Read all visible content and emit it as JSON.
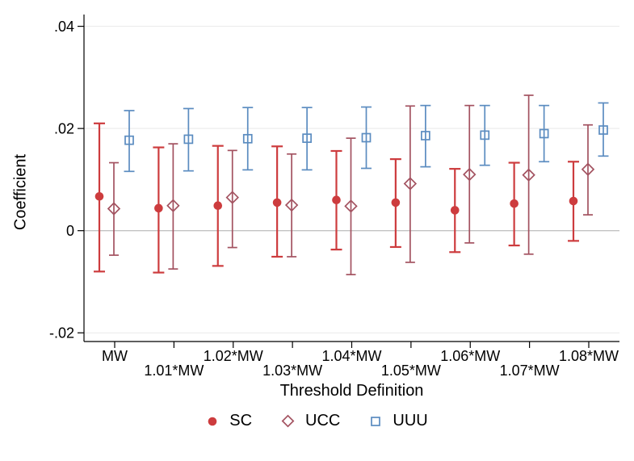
{
  "chart_data": {
    "type": "scatter",
    "subtype": "coefficient-errorbar",
    "title": "",
    "xlabel": "Threshold Definition",
    "ylabel": "Coefficient",
    "ylim": [
      -0.025,
      0.045
    ],
    "grid": true,
    "legend_position": "bottom",
    "yticks": [
      {
        "value": 0.04,
        "label": ".04"
      },
      {
        "value": 0.02,
        "label": ".02"
      },
      {
        "value": 0,
        "label": "0"
      },
      {
        "value": -0.02,
        "label": "-.02"
      }
    ],
    "categories": [
      "MW",
      "1.01*MW",
      "1.02*MW",
      "1.03*MW",
      "1.04*MW",
      "1.05*MW",
      "1.06*MW",
      "1.07*MW",
      "1.08*MW"
    ],
    "series": [
      {
        "name": "SC",
        "marker": "filled-circle",
        "color": "#cd3c3e",
        "points": [
          {
            "estimate": 0.0067,
            "ci_low": -0.008,
            "ci_high": 0.021
          },
          {
            "estimate": 0.0044,
            "ci_low": -0.0082,
            "ci_high": 0.0163
          },
          {
            "estimate": 0.0049,
            "ci_low": -0.0069,
            "ci_high": 0.0166
          },
          {
            "estimate": 0.0055,
            "ci_low": -0.0051,
            "ci_high": 0.0165
          },
          {
            "estimate": 0.006,
            "ci_low": -0.0037,
            "ci_high": 0.0156
          },
          {
            "estimate": 0.0055,
            "ci_low": -0.0032,
            "ci_high": 0.014
          },
          {
            "estimate": 0.004,
            "ci_low": -0.0042,
            "ci_high": 0.0121
          },
          {
            "estimate": 0.0053,
            "ci_low": -0.0029,
            "ci_high": 0.0133
          },
          {
            "estimate": 0.0058,
            "ci_low": -0.002,
            "ci_high": 0.0135
          }
        ]
      },
      {
        "name": "UCC",
        "marker": "hollow-diamond",
        "color": "#a35260",
        "points": [
          {
            "estimate": 0.0043,
            "ci_low": -0.0048,
            "ci_high": 0.0133
          },
          {
            "estimate": 0.0049,
            "ci_low": -0.0075,
            "ci_high": 0.017
          },
          {
            "estimate": 0.0065,
            "ci_low": -0.0033,
            "ci_high": 0.0157
          },
          {
            "estimate": 0.005,
            "ci_low": -0.0051,
            "ci_high": 0.015
          },
          {
            "estimate": 0.0048,
            "ci_low": -0.0086,
            "ci_high": 0.0181
          },
          {
            "estimate": 0.0092,
            "ci_low": -0.0062,
            "ci_high": 0.0244
          },
          {
            "estimate": 0.011,
            "ci_low": -0.0024,
            "ci_high": 0.0245
          },
          {
            "estimate": 0.0109,
            "ci_low": -0.0046,
            "ci_high": 0.0265
          },
          {
            "estimate": 0.012,
            "ci_low": 0.0031,
            "ci_high": 0.0207
          }
        ]
      },
      {
        "name": "UUU",
        "marker": "hollow-square",
        "color": "#5b8cc0",
        "points": [
          {
            "estimate": 0.0177,
            "ci_low": 0.0116,
            "ci_high": 0.0235
          },
          {
            "estimate": 0.0179,
            "ci_low": 0.0117,
            "ci_high": 0.0239
          },
          {
            "estimate": 0.018,
            "ci_low": 0.0119,
            "ci_high": 0.0241
          },
          {
            "estimate": 0.0181,
            "ci_low": 0.0119,
            "ci_high": 0.0241
          },
          {
            "estimate": 0.0182,
            "ci_low": 0.0122,
            "ci_high": 0.0242
          },
          {
            "estimate": 0.0186,
            "ci_low": 0.0125,
            "ci_high": 0.0245
          },
          {
            "estimate": 0.0187,
            "ci_low": 0.0128,
            "ci_high": 0.0245
          },
          {
            "estimate": 0.019,
            "ci_low": 0.0135,
            "ci_high": 0.0245
          },
          {
            "estimate": 0.0197,
            "ci_low": 0.0146,
            "ci_high": 0.025
          }
        ]
      }
    ]
  },
  "colors": {
    "background": "#ffffff",
    "sc_red": "#cd3c3e",
    "ucc_maroon": "#a35260",
    "uuu_blue": "#5b8cc0",
    "gridline": "#e9e9e9",
    "zero_line": "#c3c3c3",
    "axis": "#000000",
    "text": "#000000"
  },
  "legend": {
    "items": [
      {
        "label": "SC"
      },
      {
        "label": "UCC"
      },
      {
        "label": "UUU"
      }
    ]
  }
}
